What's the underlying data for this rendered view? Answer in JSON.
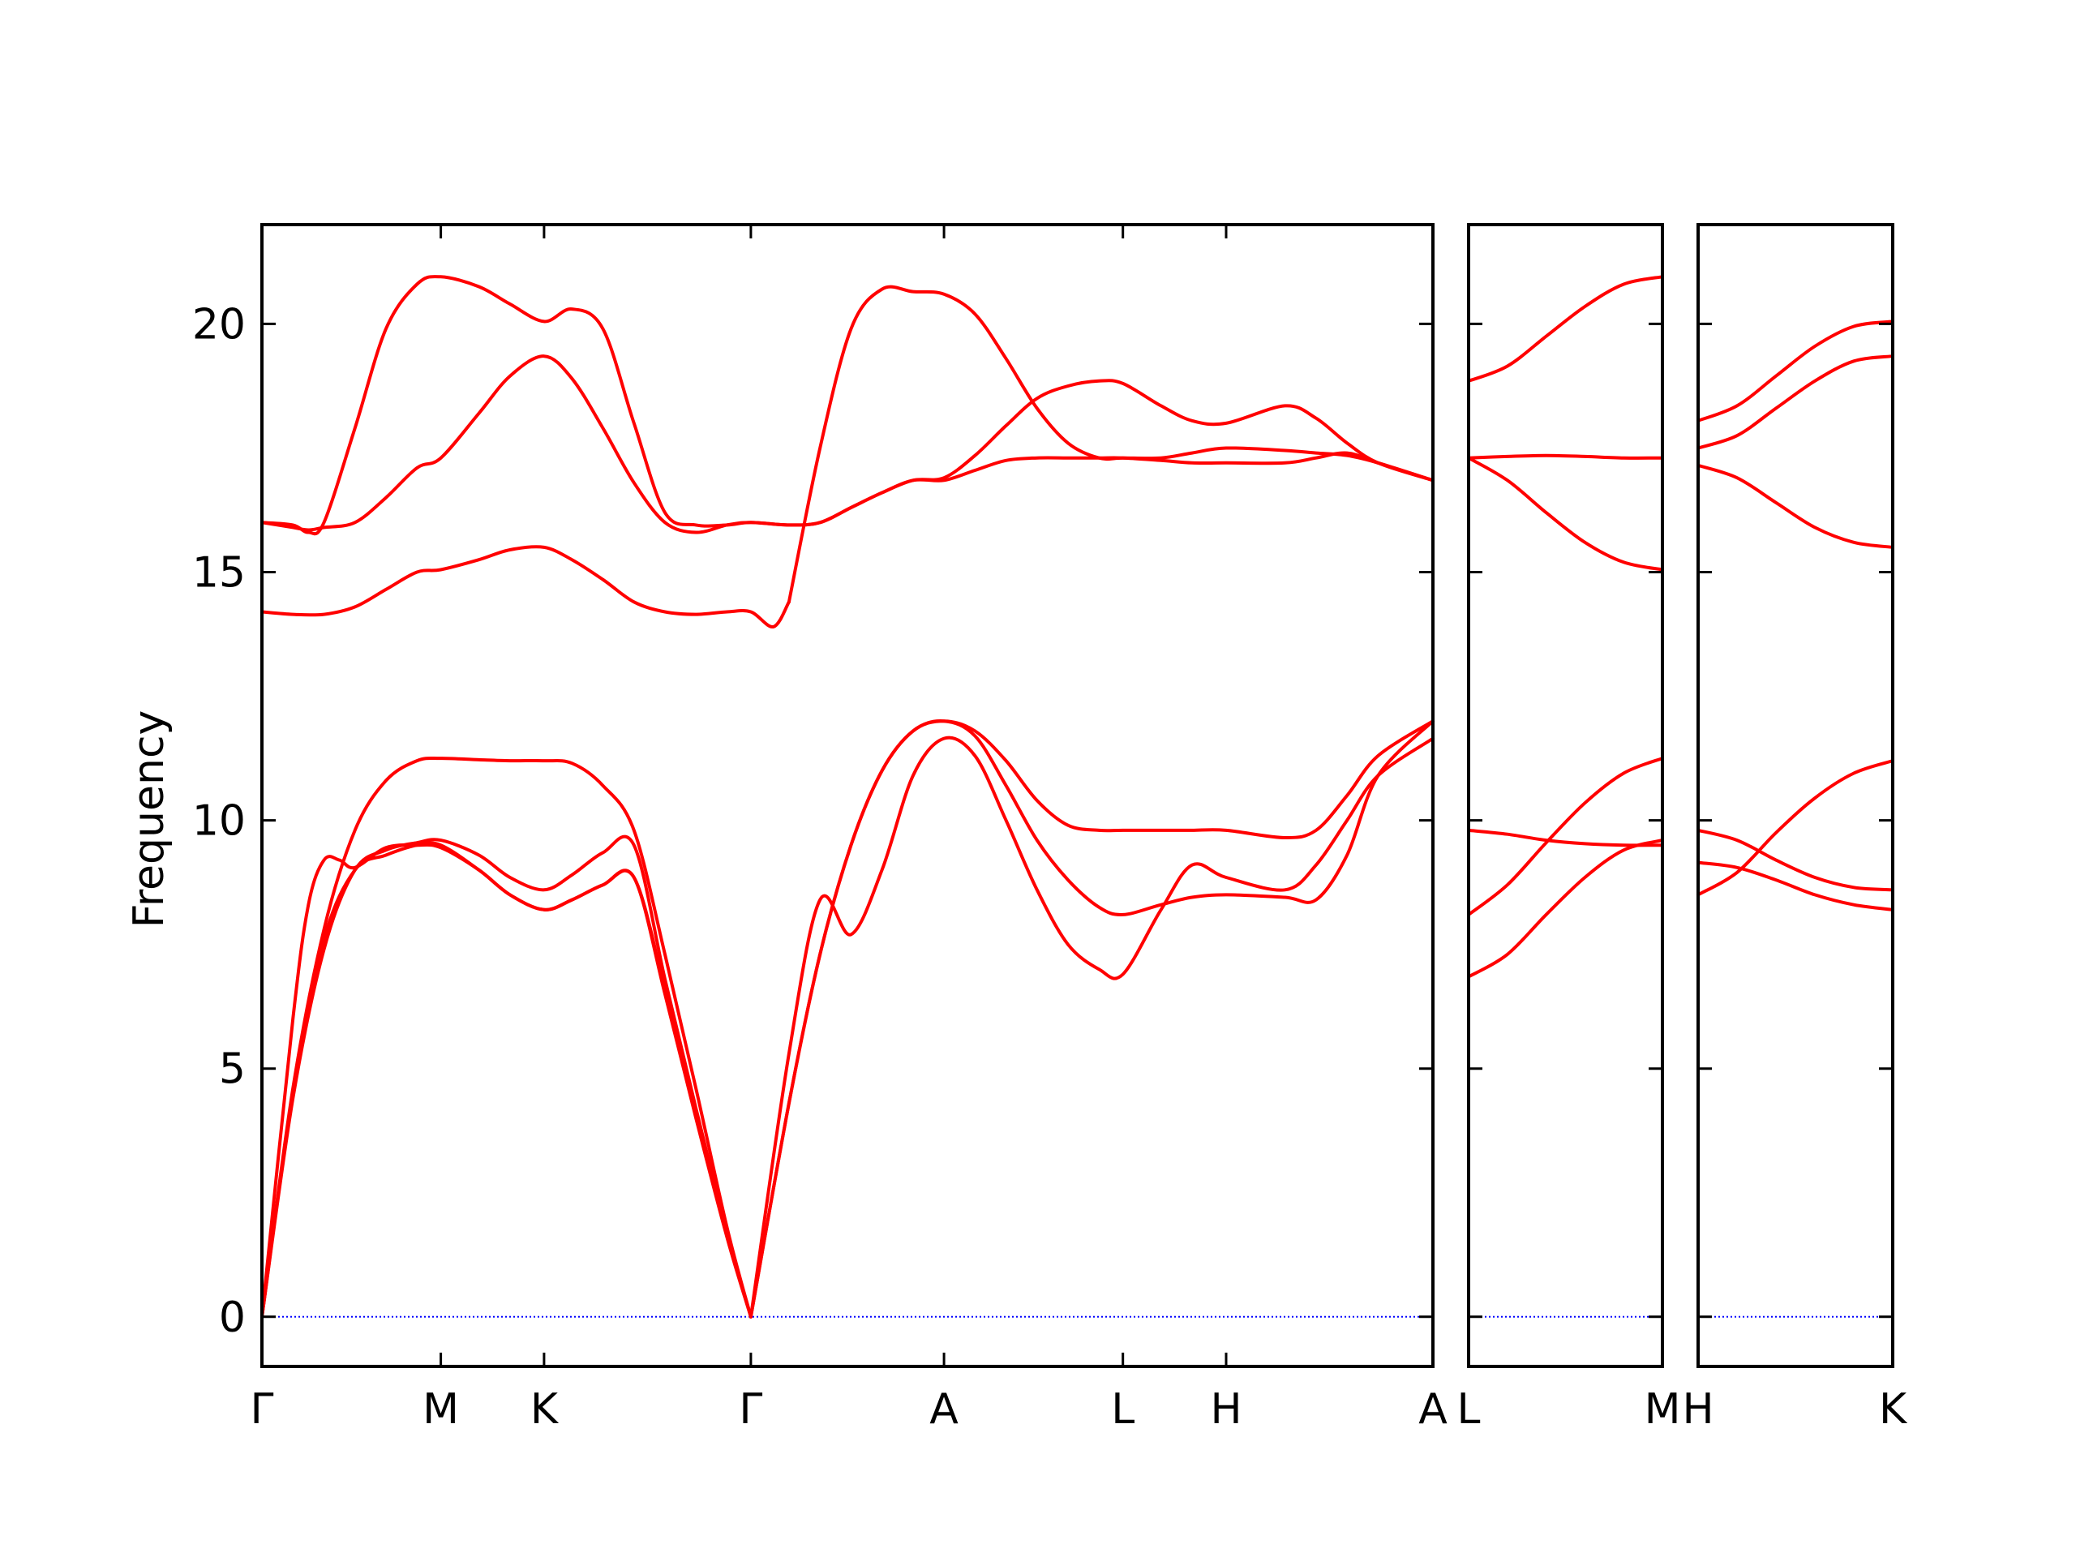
{
  "chart_data": {
    "type": "line",
    "ylabel": "Frequency",
    "ylim": [
      -1,
      22
    ],
    "yticks": [
      0,
      5,
      10,
      15,
      20
    ],
    "line_color": "#ff0000",
    "zero_line_color": "#0000ff",
    "grid": false,
    "panels": [
      {
        "labels": [
          "Γ",
          "M",
          "K",
          "Γ",
          "A",
          "L",
          "H",
          "A"
        ],
        "x": [
          0,
          0.577,
          0.91,
          1.577,
          2.2,
          2.777,
          3.11,
          3.777
        ],
        "series": [
          {
            "x": [
              0,
              0.1,
              0.2,
              0.3,
              0.4,
              0.5,
              0.577,
              0.7,
              0.8,
              0.91,
              1.0,
              1.1,
              1.2,
              1.3,
              1.4,
              1.5,
              1.577
            ],
            "y": [
              0,
              4.5,
              7.6,
              9.0,
              9.3,
              9.5,
              9.5,
              9.0,
              8.5,
              8.2,
              8.4,
              8.7,
              8.85,
              6.5,
              4.0,
              1.6,
              0
            ]
          },
          {
            "x": [
              0,
              0.1,
              0.2,
              0.3,
              0.4,
              0.5,
              0.577,
              0.7,
              0.8,
              0.91,
              1.0,
              1.1,
              1.2,
              1.3,
              1.4,
              1.5,
              1.577
            ],
            "y": [
              0,
              4.4,
              7.4,
              9.0,
              9.4,
              9.55,
              9.6,
              9.3,
              8.85,
              8.6,
              8.9,
              9.35,
              9.5,
              6.8,
              4.2,
              1.7,
              0
            ]
          },
          {
            "x": [
              0,
              0.1,
              0.15,
              0.2,
              0.25,
              0.3,
              0.4,
              0.5,
              0.577,
              0.7,
              0.8,
              0.91,
              1.0,
              1.1,
              1.2,
              1.3,
              1.4,
              1.5,
              1.577
            ],
            "y": [
              0,
              6.0,
              8.3,
              9.2,
              9.2,
              9.05,
              9.45,
              9.5,
              9.45,
              9.0,
              8.5,
              8.2,
              8.4,
              8.7,
              8.85,
              6.6,
              4.1,
              1.65,
              0
            ]
          },
          {
            "x": [
              0,
              0.1,
              0.2,
              0.3,
              0.4,
              0.5,
              0.577,
              0.7,
              0.8,
              0.91,
              1.0,
              1.1,
              1.2,
              1.3,
              1.4,
              1.5,
              1.577
            ],
            "y": [
              0,
              4.6,
              7.8,
              9.8,
              10.8,
              11.2,
              11.25,
              11.22,
              11.2,
              11.2,
              11.15,
              10.7,
              9.8,
              7.3,
              4.6,
              1.8,
              0
            ]
          },
          {
            "x": [
              1.577,
              1.7,
              1.8,
              1.9,
              2.0,
              2.1,
              2.2,
              2.3,
              2.4,
              2.5,
              2.6,
              2.7,
              2.777,
              2.9,
              3.0,
              3.11,
              3.3,
              3.4,
              3.5,
              3.6,
              3.777
            ],
            "y": [
              0,
              5.3,
              8.4,
              7.7,
              9.0,
              10.9,
              11.65,
              11.3,
              10.0,
              8.6,
              7.5,
              7.0,
              6.9,
              8.2,
              9.1,
              8.85,
              8.6,
              9.1,
              10.0,
              10.9,
              11.65
            ]
          },
          {
            "x": [
              1.577,
              1.7,
              1.8,
              1.9,
              2.0,
              2.1,
              2.2,
              2.3,
              2.4,
              2.5,
              2.6,
              2.7,
              2.777,
              2.9,
              3.0,
              3.11,
              3.3,
              3.4,
              3.5,
              3.6,
              3.777
            ],
            "y": [
              0,
              4.3,
              7.3,
              9.5,
              11.0,
              11.8,
              12.0,
              11.7,
              10.7,
              9.6,
              8.8,
              8.25,
              8.1,
              8.3,
              8.45,
              8.5,
              8.45,
              8.4,
              9.3,
              10.9,
              12.0
            ]
          },
          {
            "x": [
              1.577,
              1.7,
              1.8,
              1.9,
              2.0,
              2.1,
              2.2,
              2.3,
              2.4,
              2.5,
              2.6,
              2.7,
              2.777,
              2.9,
              3.0,
              3.11,
              3.3,
              3.4,
              3.5,
              3.6,
              3.777
            ],
            "y": [
              0,
              4.3,
              7.3,
              9.5,
              11.0,
              11.8,
              12.0,
              11.8,
              11.2,
              10.4,
              9.9,
              9.8,
              9.8,
              9.8,
              9.8,
              9.8,
              9.65,
              9.8,
              10.5,
              11.3,
              12.0
            ]
          },
          {
            "x": [
              0,
              0.1,
              0.2,
              0.3,
              0.4,
              0.5,
              0.577,
              0.7,
              0.8,
              0.91,
              1.0,
              1.1,
              1.2,
              1.3,
              1.4,
              1.5,
              1.577,
              1.65,
              1.7
            ],
            "y": [
              14.2,
              14.15,
              14.15,
              14.3,
              14.65,
              15.0,
              15.05,
              15.25,
              15.45,
              15.5,
              15.25,
              14.85,
              14.4,
              14.2,
              14.15,
              14.2,
              14.2,
              13.9,
              14.4
            ]
          },
          {
            "x": [
              1.7,
              1.8,
              1.9,
              2.0,
              2.1,
              2.2,
              2.3,
              2.4,
              2.5,
              2.6,
              2.7,
              2.777,
              2.9,
              3.0,
              3.11,
              3.3,
              3.4,
              3.5,
              3.6,
              3.777
            ],
            "y": [
              14.4,
              17.5,
              19.9,
              20.7,
              20.65,
              20.6,
              20.2,
              19.3,
              18.3,
              17.6,
              17.3,
              17.3,
              17.3,
              17.4,
              17.5,
              17.45,
              17.4,
              17.35,
              17.2,
              16.85
            ]
          },
          {
            "x": [
              0,
              0.1,
              0.15,
              0.2,
              0.3,
              0.4,
              0.5,
              0.577,
              0.7,
              0.8,
              0.91,
              1.0,
              1.1,
              1.2,
              1.3,
              1.4,
              1.5,
              1.577,
              1.7,
              1.8,
              1.9,
              2.0,
              2.1,
              2.2,
              2.3,
              2.4,
              2.5,
              2.6,
              2.7,
              2.777,
              2.9,
              3.0,
              3.11,
              3.3,
              3.4,
              3.5,
              3.6,
              3.777
            ],
            "y": [
              16.0,
              15.9,
              15.85,
              15.9,
              16.0,
              16.5,
              17.1,
              17.3,
              18.2,
              18.95,
              19.35,
              18.9,
              17.9,
              16.8,
              16.0,
              15.8,
              15.95,
              16.0,
              15.95,
              16.0,
              16.3,
              16.6,
              16.85,
              16.85,
              17.05,
              17.25,
              17.3,
              17.3,
              17.3,
              17.3,
              17.25,
              17.2,
              17.2,
              17.2,
              17.3,
              17.4,
              17.2,
              16.85
            ]
          },
          {
            "x": [
              0,
              0.1,
              0.15,
              0.2,
              0.3,
              0.4,
              0.5,
              0.577,
              0.7,
              0.8,
              0.91,
              1.0,
              1.1,
              1.2,
              1.3,
              1.4,
              1.5,
              1.577,
              1.7,
              1.8,
              1.9,
              2.0,
              2.1,
              2.2,
              2.3,
              2.4,
              2.5,
              2.6,
              2.7,
              2.777,
              2.9,
              3.0,
              3.11,
              3.3,
              3.4,
              3.5,
              3.6,
              3.777
            ],
            "y": [
              16.0,
              15.95,
              15.8,
              16.0,
              17.9,
              19.9,
              20.8,
              20.95,
              20.75,
              20.4,
              20.05,
              20.3,
              19.9,
              18.0,
              16.2,
              15.95,
              15.95,
              16.0,
              15.95,
              16.0,
              16.3,
              16.6,
              16.85,
              16.9,
              17.35,
              17.95,
              18.5,
              18.75,
              18.85,
              18.8,
              18.35,
              18.05,
              18.0,
              18.35,
              18.1,
              17.6,
              17.2,
              16.85
            ]
          }
        ]
      },
      {
        "labels": [
          "L",
          "M"
        ],
        "x": [
          0,
          1
        ],
        "series": [
          {
            "x": [
              0,
              0.2,
              0.4,
              0.6,
              0.8,
              1.0
            ],
            "y": [
              6.85,
              7.3,
              8.1,
              8.85,
              9.4,
              9.6
            ]
          },
          {
            "x": [
              0,
              0.2,
              0.4,
              0.6,
              0.8,
              1.0
            ],
            "y": [
              8.1,
              8.7,
              9.55,
              10.35,
              10.95,
              11.25
            ]
          },
          {
            "x": [
              0,
              0.2,
              0.4,
              0.6,
              0.8,
              1.0
            ],
            "y": [
              9.8,
              9.72,
              9.6,
              9.53,
              9.5,
              9.5
            ]
          },
          {
            "x": [
              0,
              0.2,
              0.4,
              0.6,
              0.8,
              1.0
            ],
            "y": [
              17.3,
              16.85,
              16.2,
              15.6,
              15.2,
              15.05
            ]
          },
          {
            "x": [
              0,
              0.2,
              0.4,
              0.6,
              0.8,
              1.0
            ],
            "y": [
              17.3,
              17.33,
              17.35,
              17.33,
              17.3,
              17.3
            ]
          },
          {
            "x": [
              0,
              0.2,
              0.4,
              0.6,
              0.8,
              1.0
            ],
            "y": [
              18.85,
              19.15,
              19.75,
              20.35,
              20.8,
              20.95
            ]
          }
        ]
      },
      {
        "labels": [
          "H",
          "K"
        ],
        "x": [
          0,
          1
        ],
        "series": [
          {
            "x": [
              0,
              0.2,
              0.4,
              0.6,
              0.8,
              1.0
            ],
            "y": [
              8.5,
              8.95,
              9.75,
              10.45,
              10.95,
              11.2
            ]
          },
          {
            "x": [
              0,
              0.2,
              0.4,
              0.6,
              0.8,
              1.0
            ],
            "y": [
              9.15,
              9.05,
              8.8,
              8.5,
              8.3,
              8.2
            ]
          },
          {
            "x": [
              0,
              0.2,
              0.4,
              0.6,
              0.8,
              1.0
            ],
            "y": [
              9.8,
              9.6,
              9.2,
              8.85,
              8.65,
              8.6
            ]
          },
          {
            "x": [
              0,
              0.2,
              0.4,
              0.6,
              0.8,
              1.0
            ],
            "y": [
              17.15,
              16.9,
              16.4,
              15.9,
              15.6,
              15.5
            ]
          },
          {
            "x": [
              0,
              0.2,
              0.4,
              0.6,
              0.8,
              1.0
            ],
            "y": [
              17.5,
              17.75,
              18.3,
              18.85,
              19.25,
              19.35
            ]
          },
          {
            "x": [
              0,
              0.2,
              0.4,
              0.6,
              0.8,
              1.0
            ],
            "y": [
              18.05,
              18.35,
              18.95,
              19.55,
              19.95,
              20.05
            ]
          }
        ]
      }
    ]
  }
}
